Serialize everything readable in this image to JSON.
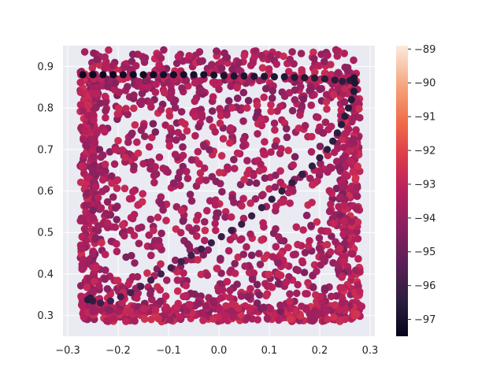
{
  "chart_data": {
    "type": "scatter",
    "title": "",
    "xlabel": "",
    "ylabel": "",
    "xlim": [
      -0.3,
      0.3
    ],
    "ylim": [
      0.25,
      0.95
    ],
    "xticks": [
      "−0.3",
      "−0.2",
      "−0.1",
      "0.0",
      "0.1",
      "0.2",
      "0.3"
    ],
    "yticks": [
      "0.3",
      "0.4",
      "0.5",
      "0.6",
      "0.7",
      "0.8",
      "0.9"
    ],
    "grid": true,
    "background": "#eaeaf2",
    "colorbar": {
      "min": -97.5,
      "max": -88.9,
      "ticks": [
        "−97",
        "−96",
        "−95",
        "−94",
        "−93",
        "−92",
        "−91",
        "−90",
        "−89"
      ],
      "colormap": "rocket"
    },
    "series": [
      {
        "description": "trajectory (darkest values)",
        "points": [
          [
            -0.27,
            0.88,
            -97.3
          ],
          [
            -0.25,
            0.88,
            -97.3
          ],
          [
            -0.23,
            0.88,
            -97.3
          ],
          [
            -0.21,
            0.88,
            -97.3
          ],
          [
            -0.19,
            0.88,
            -97.2
          ],
          [
            -0.17,
            0.88,
            -97.2
          ],
          [
            -0.15,
            0.88,
            -97.2
          ],
          [
            -0.13,
            0.88,
            -97.2
          ],
          [
            -0.11,
            0.88,
            -97.1
          ],
          [
            -0.09,
            0.88,
            -97.1
          ],
          [
            -0.07,
            0.88,
            -97.1
          ],
          [
            -0.05,
            0.88,
            -97.0
          ],
          [
            -0.03,
            0.88,
            -97.0
          ],
          [
            -0.01,
            0.879,
            -97.0
          ],
          [
            0.01,
            0.878,
            -96.9
          ],
          [
            0.03,
            0.877,
            -96.9
          ],
          [
            0.05,
            0.877,
            -96.9
          ],
          [
            0.07,
            0.876,
            -96.8
          ],
          [
            0.09,
            0.876,
            -96.8
          ],
          [
            0.11,
            0.875,
            -96.8
          ],
          [
            0.13,
            0.875,
            -96.7
          ],
          [
            0.15,
            0.874,
            -96.7
          ],
          [
            0.17,
            0.873,
            -96.7
          ],
          [
            0.19,
            0.872,
            -96.6
          ],
          [
            0.21,
            0.87,
            -96.6
          ],
          [
            0.23,
            0.867,
            -96.6
          ],
          [
            0.245,
            0.864,
            -96.5
          ],
          [
            0.26,
            0.866,
            -96.6
          ],
          [
            0.268,
            0.872,
            -96.8
          ],
          [
            0.27,
            0.86,
            -96.8
          ],
          [
            0.268,
            0.84,
            -96.7
          ],
          [
            0.263,
            0.82,
            -96.7
          ],
          [
            0.257,
            0.8,
            -96.6
          ],
          [
            0.25,
            0.78,
            -96.6
          ],
          [
            0.243,
            0.76,
            -96.6
          ],
          [
            0.235,
            0.74,
            -96.5
          ],
          [
            0.226,
            0.72,
            -96.5
          ],
          [
            0.215,
            0.7,
            -96.5
          ],
          [
            0.2,
            0.68,
            -96.4
          ],
          [
            0.185,
            0.66,
            -96.4
          ],
          [
            0.165,
            0.64,
            -96.4
          ],
          [
            0.145,
            0.62,
            -96.3
          ],
          [
            0.125,
            0.6,
            -96.3
          ],
          [
            0.105,
            0.58,
            -96.3
          ],
          [
            0.085,
            0.56,
            -96.2
          ],
          [
            0.065,
            0.54,
            -96.2
          ],
          [
            0.045,
            0.52,
            -96.2
          ],
          [
            0.025,
            0.505,
            -96.1
          ],
          [
            0.005,
            0.49,
            -96.1
          ],
          [
            -0.015,
            0.475,
            -96.1
          ],
          [
            -0.035,
            0.46,
            -96.0
          ],
          [
            -0.055,
            0.445,
            -96.0
          ],
          [
            -0.075,
            0.43,
            -96.0
          ],
          [
            -0.095,
            0.415,
            -95.9
          ],
          [
            -0.115,
            0.4,
            -95.9
          ],
          [
            -0.135,
            0.385,
            -95.9
          ],
          [
            -0.155,
            0.37,
            -95.8
          ],
          [
            -0.175,
            0.355,
            -95.8
          ],
          [
            -0.195,
            0.345,
            -95.8
          ],
          [
            -0.215,
            0.335,
            -95.9
          ],
          [
            -0.235,
            0.33,
            -96.0
          ],
          [
            -0.25,
            0.335,
            -96.3
          ],
          [
            -0.26,
            0.338,
            -96.6
          ],
          [
            -0.255,
            0.342,
            -96.5
          ]
        ]
      }
    ]
  }
}
